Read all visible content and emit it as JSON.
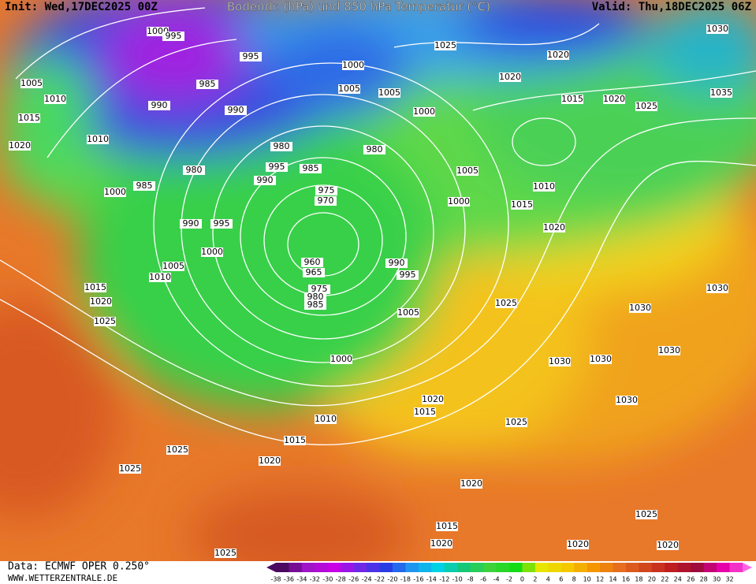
{
  "header": {
    "init": "Init: Wed,17DEC2025 00Z",
    "title": "Bodendr. (hPa) und 850 hPa Temperatur (°C)",
    "valid": "Valid: Thu,18DEC2025 06Z"
  },
  "footer": {
    "data": "Data: ECMWF OPER 0.250°",
    "site": "WWW.WETTERZENTRALE.DE"
  },
  "colorbar_labels": [
    -38,
    -36,
    -34,
    -32,
    -30,
    -28,
    -26,
    -24,
    -22,
    -20,
    -18,
    -16,
    -14,
    -12,
    -10,
    -8,
    -6,
    -4,
    -2,
    0,
    2,
    4,
    6,
    8,
    10,
    12,
    14,
    16,
    18,
    20,
    22,
    24,
    26,
    28,
    30,
    32
  ],
  "isobar_labels": [
    "1000",
    "995",
    "995",
    "1000",
    "1005",
    "1005",
    "1025",
    "1020",
    "1020",
    "1030",
    "1015",
    "1020",
    "1025",
    "1035",
    "1005",
    "1010",
    "1015",
    "1020",
    "1010",
    "990",
    "985",
    "990",
    "980",
    "980",
    "1000",
    "995",
    "985",
    "990",
    "975",
    "970",
    "980",
    "985",
    "1000",
    "990",
    "995",
    "1005",
    "1010",
    "1000",
    "1015",
    "1020",
    "1000",
    "1005",
    "1010",
    "1015",
    "1020",
    "1025",
    "960",
    "965",
    "975",
    "980",
    "985",
    "990",
    "995",
    "1005",
    "1025",
    "1030",
    "1030",
    "1030",
    "1030",
    "1030",
    "1030",
    "1000",
    "1020",
    "1015",
    "1025",
    "1010",
    "1015",
    "1020",
    "1025",
    "1025",
    "1020",
    "1015",
    "1025",
    "1020",
    "1020",
    "1025",
    "1020"
  ]
}
